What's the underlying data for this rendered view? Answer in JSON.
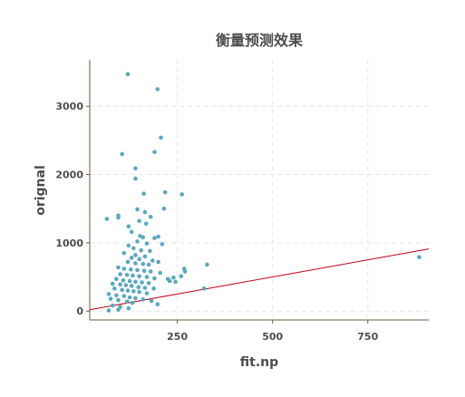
{
  "chart_data": {
    "type": "scatter",
    "title": "衡量预测效果",
    "xlabel": "fit.np",
    "ylabel": "orignal",
    "xlim": [
      20,
      910
    ],
    "ylim": [
      -130,
      3680
    ],
    "xticks": [
      250,
      500,
      750
    ],
    "yticks": [
      0,
      1000,
      2000,
      3000
    ],
    "grid": true,
    "colors": {
      "points": "#5ba8be",
      "line": "#c00018"
    },
    "reference_line": {
      "type": "y=x",
      "points": [
        [
          20,
          20
        ],
        [
          910,
          910
        ]
      ]
    },
    "series": [
      {
        "points": [
          [
            120,
            3470
          ],
          [
            198,
            3250
          ],
          [
            207,
            2540
          ],
          [
            105,
            2300
          ],
          [
            190,
            2330
          ],
          [
            140,
            2090
          ],
          [
            140,
            1940
          ],
          [
            218,
            1740
          ],
          [
            162,
            1720
          ],
          [
            262,
            1710
          ],
          [
            145,
            1490
          ],
          [
            165,
            1450
          ],
          [
            180,
            1380
          ],
          [
            215,
            1500
          ],
          [
            65,
            1350
          ],
          [
            95,
            1370
          ],
          [
            95,
            1400
          ],
          [
            150,
            1320
          ],
          [
            168,
            1280
          ],
          [
            122,
            1240
          ],
          [
            130,
            1160
          ],
          [
            152,
            1100
          ],
          [
            160,
            1080
          ],
          [
            190,
            1070
          ],
          [
            200,
            1090
          ],
          [
            210,
            980
          ],
          [
            145,
            1020
          ],
          [
            170,
            990
          ],
          [
            122,
            960
          ],
          [
            135,
            920
          ],
          [
            155,
            890
          ],
          [
            178,
            880
          ],
          [
            110,
            850
          ],
          [
            140,
            820
          ],
          [
            165,
            800
          ],
          [
            130,
            780
          ],
          [
            150,
            760
          ],
          [
            185,
            740
          ],
          [
            120,
            720
          ],
          [
            140,
            700
          ],
          [
            160,
            690
          ],
          [
            175,
            680
          ],
          [
            200,
            720
          ],
          [
            95,
            640
          ],
          [
            110,
            620
          ],
          [
            128,
            610
          ],
          [
            145,
            600
          ],
          [
            163,
            590
          ],
          [
            180,
            580
          ],
          [
            205,
            560
          ],
          [
            268,
            620
          ],
          [
            270,
            580
          ],
          [
            328,
            680
          ],
          [
            100,
            540
          ],
          [
            118,
            530
          ],
          [
            133,
            520
          ],
          [
            150,
            510
          ],
          [
            170,
            500
          ],
          [
            190,
            480
          ],
          [
            225,
            470
          ],
          [
            240,
            490
          ],
          [
            90,
            470
          ],
          [
            108,
            450
          ],
          [
            125,
            440
          ],
          [
            140,
            430
          ],
          [
            157,
            420
          ],
          [
            175,
            410
          ],
          [
            230,
            440
          ],
          [
            245,
            430
          ],
          [
            80,
            400
          ],
          [
            100,
            390
          ],
          [
            115,
            380
          ],
          [
            130,
            370
          ],
          [
            148,
            350
          ],
          [
            165,
            340
          ],
          [
            188,
            330
          ],
          [
            260,
            510
          ],
          [
            85,
            330
          ],
          [
            105,
            310
          ],
          [
            120,
            300
          ],
          [
            135,
            290
          ],
          [
            150,
            280
          ],
          [
            170,
            260
          ],
          [
            70,
            250
          ],
          [
            90,
            230
          ],
          [
            110,
            220
          ],
          [
            125,
            200
          ],
          [
            140,
            190
          ],
          [
            160,
            170
          ],
          [
            182,
            150
          ],
          [
            75,
            180
          ],
          [
            95,
            160
          ],
          [
            118,
            140
          ],
          [
            132,
            120
          ],
          [
            198,
            100
          ],
          [
            80,
            80
          ],
          [
            100,
            60
          ],
          [
            122,
            40
          ],
          [
            95,
            20
          ],
          [
            70,
            10
          ],
          [
            320,
            330
          ],
          [
            885,
            790
          ]
        ]
      }
    ]
  }
}
